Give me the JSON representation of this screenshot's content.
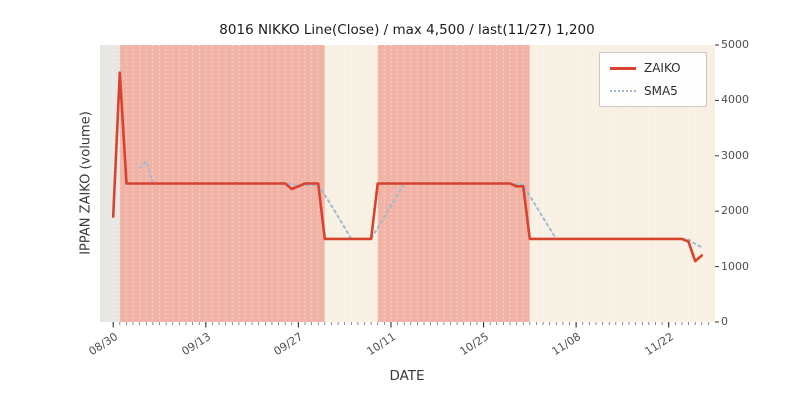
{
  "chart_data": {
    "type": "line",
    "title": "8016 NIKKO Line(Close) / max 4,500 / last(11/27) 1,200",
    "xlabel": "DATE",
    "ylabel": "IPPAN ZAIKO (volume)",
    "ylim": [
      0,
      5000
    ],
    "yticks": [
      0,
      1000,
      2000,
      3000,
      4000,
      5000
    ],
    "xticks": [
      {
        "day": 0,
        "label": "08/30"
      },
      {
        "day": 14,
        "label": "09/13"
      },
      {
        "day": 28,
        "label": "09/27"
      },
      {
        "day": 42,
        "label": "10/11"
      },
      {
        "day": 56,
        "label": "10/25"
      },
      {
        "day": 70,
        "label": "11/08"
      },
      {
        "day": 84,
        "label": "11/22"
      }
    ],
    "x_start_date": "08/30",
    "x_end_date": "11/27",
    "max_value": 4500,
    "last_value": 1200,
    "grid": "vertical-daily-dashed",
    "legend": {
      "position": "upper right",
      "items": [
        {
          "name": "ZAIKO",
          "style": "solid"
        },
        {
          "name": "SMA5",
          "style": "dotted"
        }
      ]
    },
    "colors": {
      "zaiko": "#d8432f",
      "sma5": "#9fb9d0",
      "pink": "#f2b3a7",
      "cream": "#f8f0e2",
      "base": "#e9e7e4"
    },
    "spans": [
      {
        "start": 1,
        "end": 32,
        "color": "pink"
      },
      {
        "start": 32,
        "end": 40,
        "color": "cream"
      },
      {
        "start": 40,
        "end": 63,
        "color": "pink"
      },
      {
        "start": 63,
        "end": 91,
        "color": "cream"
      }
    ],
    "series": [
      {
        "name": "ZAIKO",
        "start_day": 0,
        "values": [
          1900,
          4500,
          2500,
          2500,
          2500,
          2500,
          2500,
          2500,
          2500,
          2500,
          2500,
          2500,
          2500,
          2500,
          2500,
          2500,
          2500,
          2500,
          2500,
          2500,
          2500,
          2500,
          2500,
          2500,
          2500,
          2500,
          2500,
          2400,
          2450,
          2500,
          2500,
          2500,
          1500,
          1500,
          1500,
          1500,
          1500,
          1500,
          1500,
          1500,
          2500,
          2500,
          2500,
          2500,
          2500,
          2500,
          2500,
          2500,
          2500,
          2500,
          2500,
          2500,
          2500,
          2500,
          2500,
          2500,
          2500,
          2500,
          2500,
          2500,
          2500,
          2450,
          2450,
          1500,
          1500,
          1500,
          1500,
          1500,
          1500,
          1500,
          1500,
          1500,
          1500,
          1500,
          1500,
          1500,
          1500,
          1500,
          1500,
          1500,
          1500,
          1500,
          1500,
          1500,
          1500,
          1500,
          1500,
          1450,
          1100,
          1200
        ]
      },
      {
        "name": "SMA5",
        "start_day": 4,
        "values": [
          2780,
          2900,
          2500,
          2500,
          2500,
          2500,
          2500,
          2500,
          2500,
          2500,
          2500,
          2500,
          2500,
          2500,
          2500,
          2500,
          2500,
          2500,
          2500,
          2500,
          2500,
          2500,
          2500,
          2480,
          2470,
          2470,
          2470,
          2470,
          2290,
          2100,
          1900,
          1700,
          1500,
          1500,
          1500,
          1500,
          1700,
          1900,
          2100,
          2300,
          2500,
          2500,
          2500,
          2500,
          2500,
          2500,
          2500,
          2500,
          2500,
          2500,
          2500,
          2500,
          2500,
          2500,
          2500,
          2500,
          2500,
          2490,
          2480,
          2280,
          2080,
          1880,
          1690,
          1500,
          1500,
          1500,
          1500,
          1500,
          1500,
          1500,
          1500,
          1500,
          1500,
          1500,
          1500,
          1500,
          1500,
          1500,
          1500,
          1500,
          1500,
          1500,
          1500,
          1490,
          1410,
          1350
        ]
      }
    ]
  }
}
